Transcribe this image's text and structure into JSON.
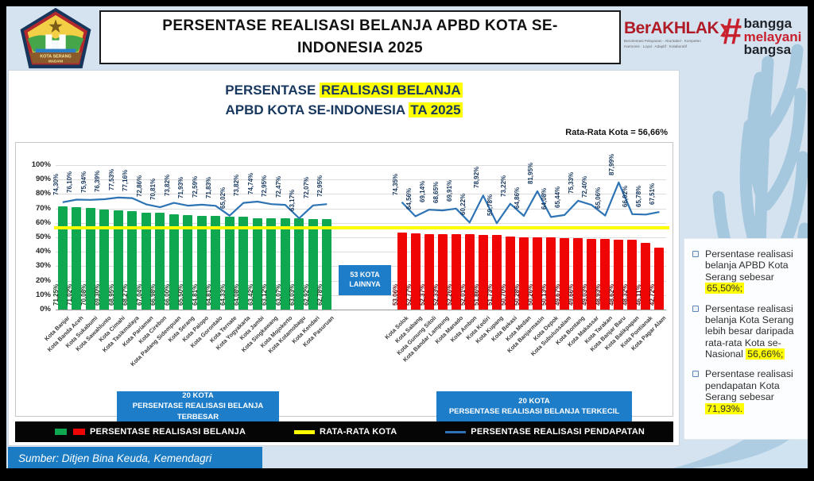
{
  "header": {
    "title_line1": "PERSENTASE REALISASI BELANJA APBD KOTA SE-",
    "title_line2": "INDONESIA 2025",
    "logo_banner_line1": "KOTA SERANG",
    "logo_banner_line2": "MADANI",
    "berakhlak": {
      "name": "BerAKHLAK",
      "arrow": "❯",
      "tagline_line1": "Berorientasi Pelayanan · Akuntabel · Kompeten",
      "tagline_line2": "Harmonis · Loyal · Adaptif · Kolaboratif"
    },
    "bangga": {
      "hash": "#",
      "line1": "bangga",
      "line2": "melayani",
      "line3": "bangsa"
    }
  },
  "chart_data": {
    "type": "bar+line",
    "title": [
      {
        "text": "PERSENTASE ",
        "highlight": false
      },
      {
        "text": "REALISASI BELANJA",
        "highlight": true
      }
    ],
    "title2": [
      {
        "text": "APBD KOTA SE-INDONESIA ",
        "highlight": false
      },
      {
        "text": "TA 2025",
        "highlight": true
      }
    ],
    "average_note": "Rata-Rata Kota = 56,66%",
    "average_value": 56.66,
    "ylim": [
      0,
      100
    ],
    "y_tick_step": 10,
    "grid": true,
    "gap_label_line1": "53 KOTA",
    "gap_label_line2": "LAINNYA",
    "colors": {
      "green": "#0FA750",
      "red": "#F00505",
      "line": "#2E74B5",
      "average": "#FFFF00"
    },
    "groups": [
      {
        "caption_line1": "20 KOTA",
        "caption_line2": "PERSENTASE REALISASI BELANJA TERBESAR",
        "bar_color": "#0FA750",
        "value_label_color": "#17401f",
        "cities": [
          "Kota Banjar",
          "Kota Banda Aceh",
          "Kota Sukabumi",
          "Kota Sawahlunto",
          "Kota Cimahi",
          "Kota Tasikmalaya",
          "Kota Pariaman",
          "Kota Cirebon",
          "Kota Padang Sidempuan",
          "Kota Serang",
          "Kota Palopo",
          "Kota Gorontalo",
          "Kota Ternate",
          "Kota Yogyakarta",
          "Kota Jambi",
          "Kota Singkawang",
          "Kota Mojokerto",
          "Kota Kotamobagu",
          "Kota Kendari",
          "Kota Pasuruan"
        ],
        "belanja": [
          71.25,
          71.02,
          70.08,
          69.3,
          68.95,
          68.27,
          67.04,
          66.98,
          66.0,
          65.5,
          64.81,
          64.81,
          64.33,
          64.08,
          63.42,
          63.12,
          63.07,
          63.03,
          62.92,
          62.78
        ],
        "pendapatan": [
          74.3,
          76.1,
          75.94,
          76.39,
          77.53,
          77.16,
          72.86,
          70.81,
          73.82,
          71.93,
          72.59,
          71.83,
          65.02,
          73.82,
          74.74,
          72.95,
          72.47,
          63.17,
          72.07,
          72.95
        ]
      },
      {
        "caption_line1": "20 KOTA",
        "caption_line2": "PERSENTASE REALISASI BELANJA TERKECIL",
        "bar_color": "#F00505",
        "value_label_color": "#5f0d10",
        "cities": [
          "Kota Solok",
          "Kota Sabang",
          "Kota Gunung Sitoli",
          "Kota Bandar Lampung",
          "Kota Manado",
          "Kota Ambon",
          "Kota Kediri",
          "Kota Kupang",
          "Kota Bekasi",
          "Kota Medan",
          "Kota Banjarmasin",
          "Kota Depok",
          "Kota Subulussalam",
          "Kota Bontang",
          "Kota Makassar",
          "Kota Tarakan",
          "Kota Banjar Baru",
          "Kota Balikpapan",
          "Kota Pontianak",
          "Kota Pagar Alam"
        ],
        "belanja": [
          53.06,
          52.77,
          52.37,
          52.33,
          52.26,
          52.01,
          51.86,
          51.73,
          50.7,
          50.28,
          50.26,
          50.13,
          49.67,
          49.66,
          49.03,
          48.93,
          48.62,
          48.32,
          46.11,
          42.72
        ],
        "pendapatan": [
          74.35,
          64.56,
          69.14,
          68.65,
          69.91,
          60.22,
          78.92,
          59.78,
          73.22,
          64.86,
          81.95,
          64.08,
          65.44,
          75.33,
          72.4,
          65.06,
          87.99,
          66.02,
          65.78,
          67.51
        ]
      }
    ]
  },
  "legend": {
    "items": [
      {
        "label": "PERSENTASE REALISASI BELANJA",
        "swatch": "bars"
      },
      {
        "label": "RATA-RATA KOTA",
        "swatch": "yellow-line"
      },
      {
        "label": "PERSENTASE REALISASI PENDAPATAN",
        "swatch": "blue-line"
      }
    ]
  },
  "sidebar": {
    "bullets": [
      {
        "text": "Persentase realisasi belanja APBD Kota Serang sebesar ",
        "highlight": "65,50%;"
      },
      {
        "text": "Persentase realisasi belanja Kota Serang lebih besar daripada rata-rata Kota se-Nasional ",
        "highlight": "56,66%;"
      },
      {
        "text": "Persentase realisasi pendapatan Kota Serang sebesar ",
        "highlight": "71,93%."
      }
    ]
  },
  "footer": {
    "source": "Sumber: Ditjen Bina Keuda, Kemendagri"
  }
}
